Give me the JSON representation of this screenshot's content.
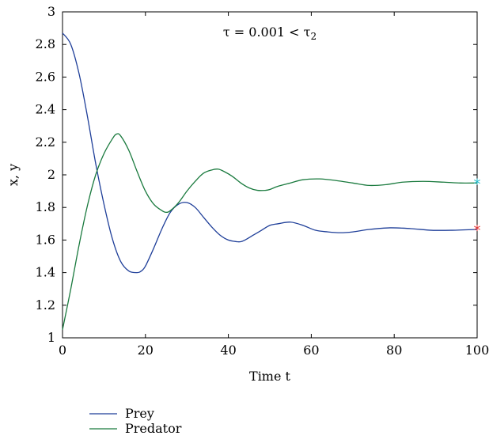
{
  "chart_data": {
    "type": "line",
    "xlabel": "Time t",
    "ylabel": "x, y",
    "xlim": [
      0,
      100
    ],
    "ylim": [
      1,
      3
    ],
    "xticks": [
      0,
      20,
      40,
      60,
      80,
      100
    ],
    "yticks": [
      1,
      1.2,
      1.4,
      1.6,
      1.8,
      2,
      2.2,
      2.4,
      2.6,
      2.8,
      3
    ],
    "grid": false,
    "legend_position": "bottom-left, below plot",
    "annotation": "τ = 0.001 < τ2",
    "series": [
      {
        "name": "Prey",
        "color": "#1f3f99",
        "x": [
          0,
          2,
          4,
          6,
          8,
          10,
          12,
          14,
          16,
          18,
          19,
          20,
          22,
          24,
          26,
          28,
          30,
          32,
          34,
          36,
          38,
          40,
          42,
          43,
          44,
          46,
          48,
          50,
          52,
          55,
          58,
          61,
          64,
          67,
          70,
          74,
          79,
          84,
          89,
          94,
          100
        ],
        "y": [
          2.87,
          2.8,
          2.62,
          2.36,
          2.07,
          1.82,
          1.61,
          1.47,
          1.41,
          1.4,
          1.41,
          1.44,
          1.55,
          1.67,
          1.77,
          1.82,
          1.83,
          1.8,
          1.74,
          1.68,
          1.63,
          1.6,
          1.59,
          1.59,
          1.6,
          1.63,
          1.66,
          1.69,
          1.7,
          1.71,
          1.69,
          1.66,
          1.65,
          1.645,
          1.65,
          1.665,
          1.675,
          1.67,
          1.66,
          1.66,
          1.665
        ]
      },
      {
        "name": "Predator",
        "color": "#1a7a3e",
        "x": [
          0,
          2,
          4,
          6,
          8,
          10,
          12,
          13,
          14,
          16,
          18,
          20,
          22,
          24,
          25,
          26,
          28,
          30,
          32,
          34,
          36,
          37.5,
          39,
          41,
          43,
          45,
          47,
          49,
          50,
          52,
          55,
          58,
          62,
          66,
          70,
          74,
          78,
          82,
          87,
          92,
          96,
          100
        ],
        "y": [
          1.05,
          1.3,
          1.57,
          1.81,
          2.0,
          2.13,
          2.22,
          2.25,
          2.24,
          2.15,
          2.02,
          1.9,
          1.82,
          1.78,
          1.77,
          1.78,
          1.83,
          1.9,
          1.96,
          2.01,
          2.03,
          2.035,
          2.02,
          1.99,
          1.95,
          1.92,
          1.905,
          1.905,
          1.91,
          1.93,
          1.95,
          1.97,
          1.975,
          1.965,
          1.95,
          1.935,
          1.94,
          1.955,
          1.96,
          1.955,
          1.95,
          1.95
        ]
      }
    ],
    "end_markers": [
      {
        "series": "Prey",
        "x": 100,
        "y": 1.665,
        "color": "#e03030",
        "symbol": "*"
      },
      {
        "series": "Predator",
        "x": 100,
        "y": 1.95,
        "color": "#20b8c8",
        "symbol": "*"
      }
    ]
  }
}
